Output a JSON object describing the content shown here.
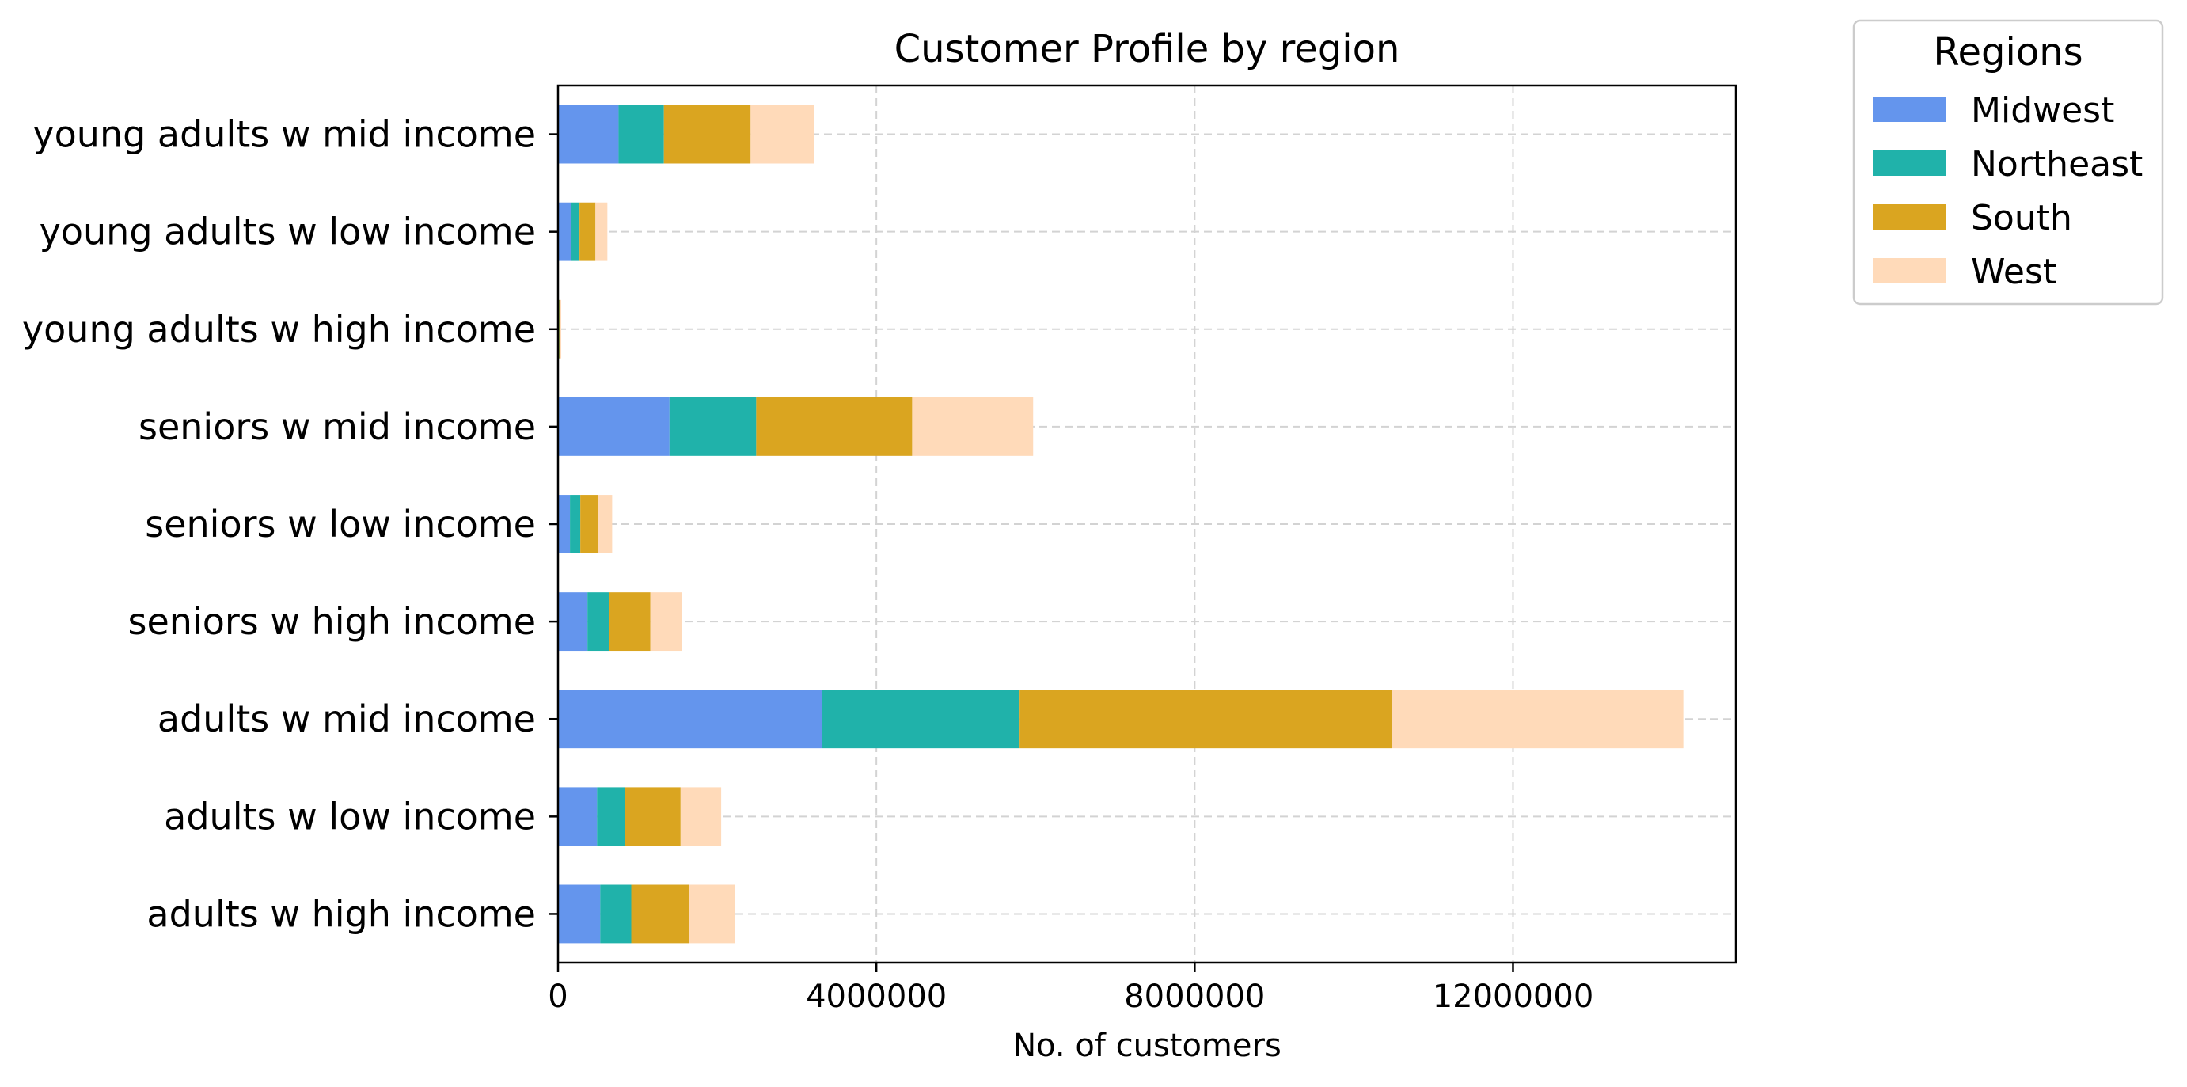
{
  "chart_data": {
    "type": "bar",
    "orientation": "horizontal",
    "stacked": true,
    "title": "Customer Profile by region",
    "xlabel": "No. of customers",
    "ylabel": "",
    "xlim": [
      0,
      14800000
    ],
    "xticks": [
      0,
      4000000,
      8000000,
      12000000
    ],
    "xtick_labels": [
      "0",
      "4000000",
      "8000000",
      "12000000"
    ],
    "grid": true,
    "legend": {
      "title": "Regions",
      "placement": "outside-top-right"
    },
    "categories": [
      "adults w high income",
      "adults w low income",
      "adults w mid income",
      "seniors w high income",
      "seniors w low income",
      "seniors w mid income",
      "young adults w high income",
      "young adults w low income",
      "young adults w mid income"
    ],
    "series": [
      {
        "name": "Midwest",
        "color": "#6495ED",
        "values": [
          530000,
          490000,
          3320000,
          370000,
          150000,
          1400000,
          10000,
          160000,
          760000
        ]
      },
      {
        "name": "Northeast",
        "color": "#20B2AA",
        "values": [
          390000,
          350000,
          2480000,
          270000,
          130000,
          1090000,
          5000,
          110000,
          570000
        ]
      },
      {
        "name": "South",
        "color": "#DAA520",
        "values": [
          730000,
          700000,
          4680000,
          520000,
          220000,
          1960000,
          15000,
          200000,
          1090000
        ]
      },
      {
        "name": "West",
        "color": "#FFDAB9",
        "values": [
          570000,
          510000,
          3660000,
          400000,
          180000,
          1520000,
          10000,
          150000,
          800000
        ]
      }
    ]
  }
}
